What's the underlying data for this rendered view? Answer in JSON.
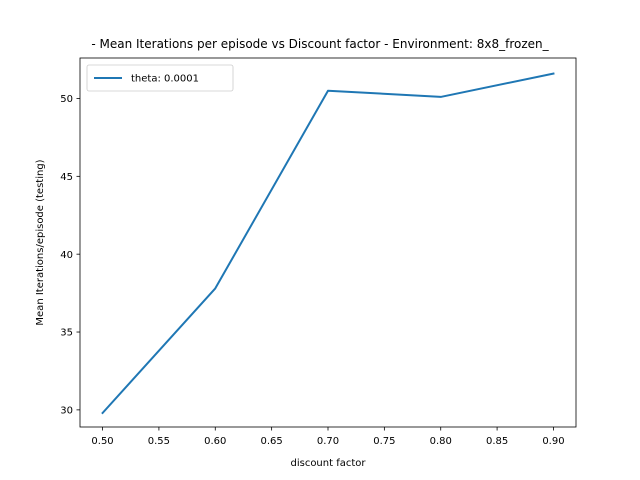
{
  "chart_data": {
    "type": "line",
    "title": "- Mean Iterations per episode vs Discount factor - Environment: 8x8_frozen_",
    "xlabel": "discount factor",
    "ylabel": "Mean Iterations/episode (testing)",
    "xlim": [
      0.48,
      0.92
    ],
    "ylim": [
      28.9,
      52.6
    ],
    "xticks": [
      0.5,
      0.55,
      0.6,
      0.65,
      0.7,
      0.75,
      0.8,
      0.85,
      0.9
    ],
    "xtick_labels": [
      "0.50",
      "0.55",
      "0.60",
      "0.65",
      "0.70",
      "0.75",
      "0.80",
      "0.85",
      "0.90"
    ],
    "yticks": [
      30,
      35,
      40,
      45,
      50
    ],
    "ytick_labels": [
      "30",
      "35",
      "40",
      "45",
      "50"
    ],
    "grid": false,
    "legend": {
      "placement": "upper-left"
    },
    "series": [
      {
        "name": "theta: 0.0001",
        "color": "#1f77b4",
        "x": [
          0.5,
          0.6,
          0.7,
          0.8,
          0.9
        ],
        "y": [
          29.8,
          37.8,
          50.5,
          50.1,
          51.6
        ]
      }
    ]
  }
}
